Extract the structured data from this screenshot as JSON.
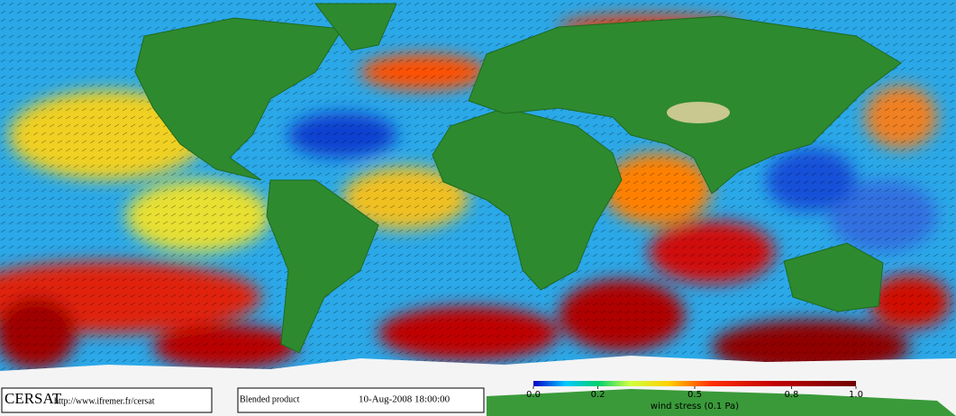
{
  "footer": {
    "logo": "CERSAT",
    "url": "http://www.ifremer.fr/cersat",
    "product": "Blended product",
    "timestamp": "10-Aug-2008 18:00:00"
  },
  "colorbar": {
    "label": "wind stress (0.1 Pa)",
    "lim": [
      0,
      1
    ],
    "ticks": [
      {
        "value": 0,
        "label": "0.0"
      },
      0.2,
      0.5,
      0.8,
      {
        "value": 1,
        "label": "1.0"
      }
    ]
  }
}
